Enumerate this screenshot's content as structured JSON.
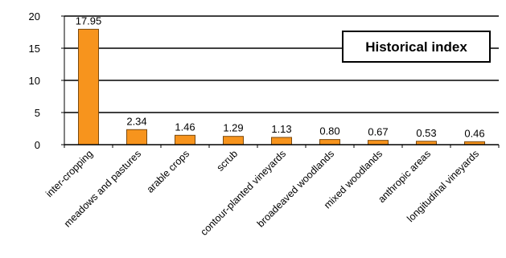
{
  "chart_data": {
    "type": "bar",
    "title": "Historical index",
    "legend_position": "top-right",
    "grid": true,
    "bar_color": "#f7941d",
    "bar_stroke": "#7a4a10",
    "categories": [
      "inter-cropping",
      "meadows and pastures",
      "arable crops",
      "scrub",
      "contour-planted vineyards",
      "broadeaved woodlands",
      "mixed woodlands",
      "anthropic areas",
      "longitudinal vineyards"
    ],
    "values": [
      17.95,
      2.34,
      1.46,
      1.29,
      1.13,
      0.8,
      0.67,
      0.53,
      0.46
    ],
    "value_labels": [
      "17.95",
      "2.34",
      "1.46",
      "1.29",
      "1.13",
      "0.80",
      "0.67",
      "0.53",
      "0.46"
    ],
    "ylim": [
      0,
      20
    ],
    "yticks": [
      0,
      5,
      10,
      15,
      20
    ],
    "ytick_labels": [
      "0",
      "5",
      "10",
      "15",
      "20"
    ],
    "xlabel": "",
    "ylabel": ""
  }
}
